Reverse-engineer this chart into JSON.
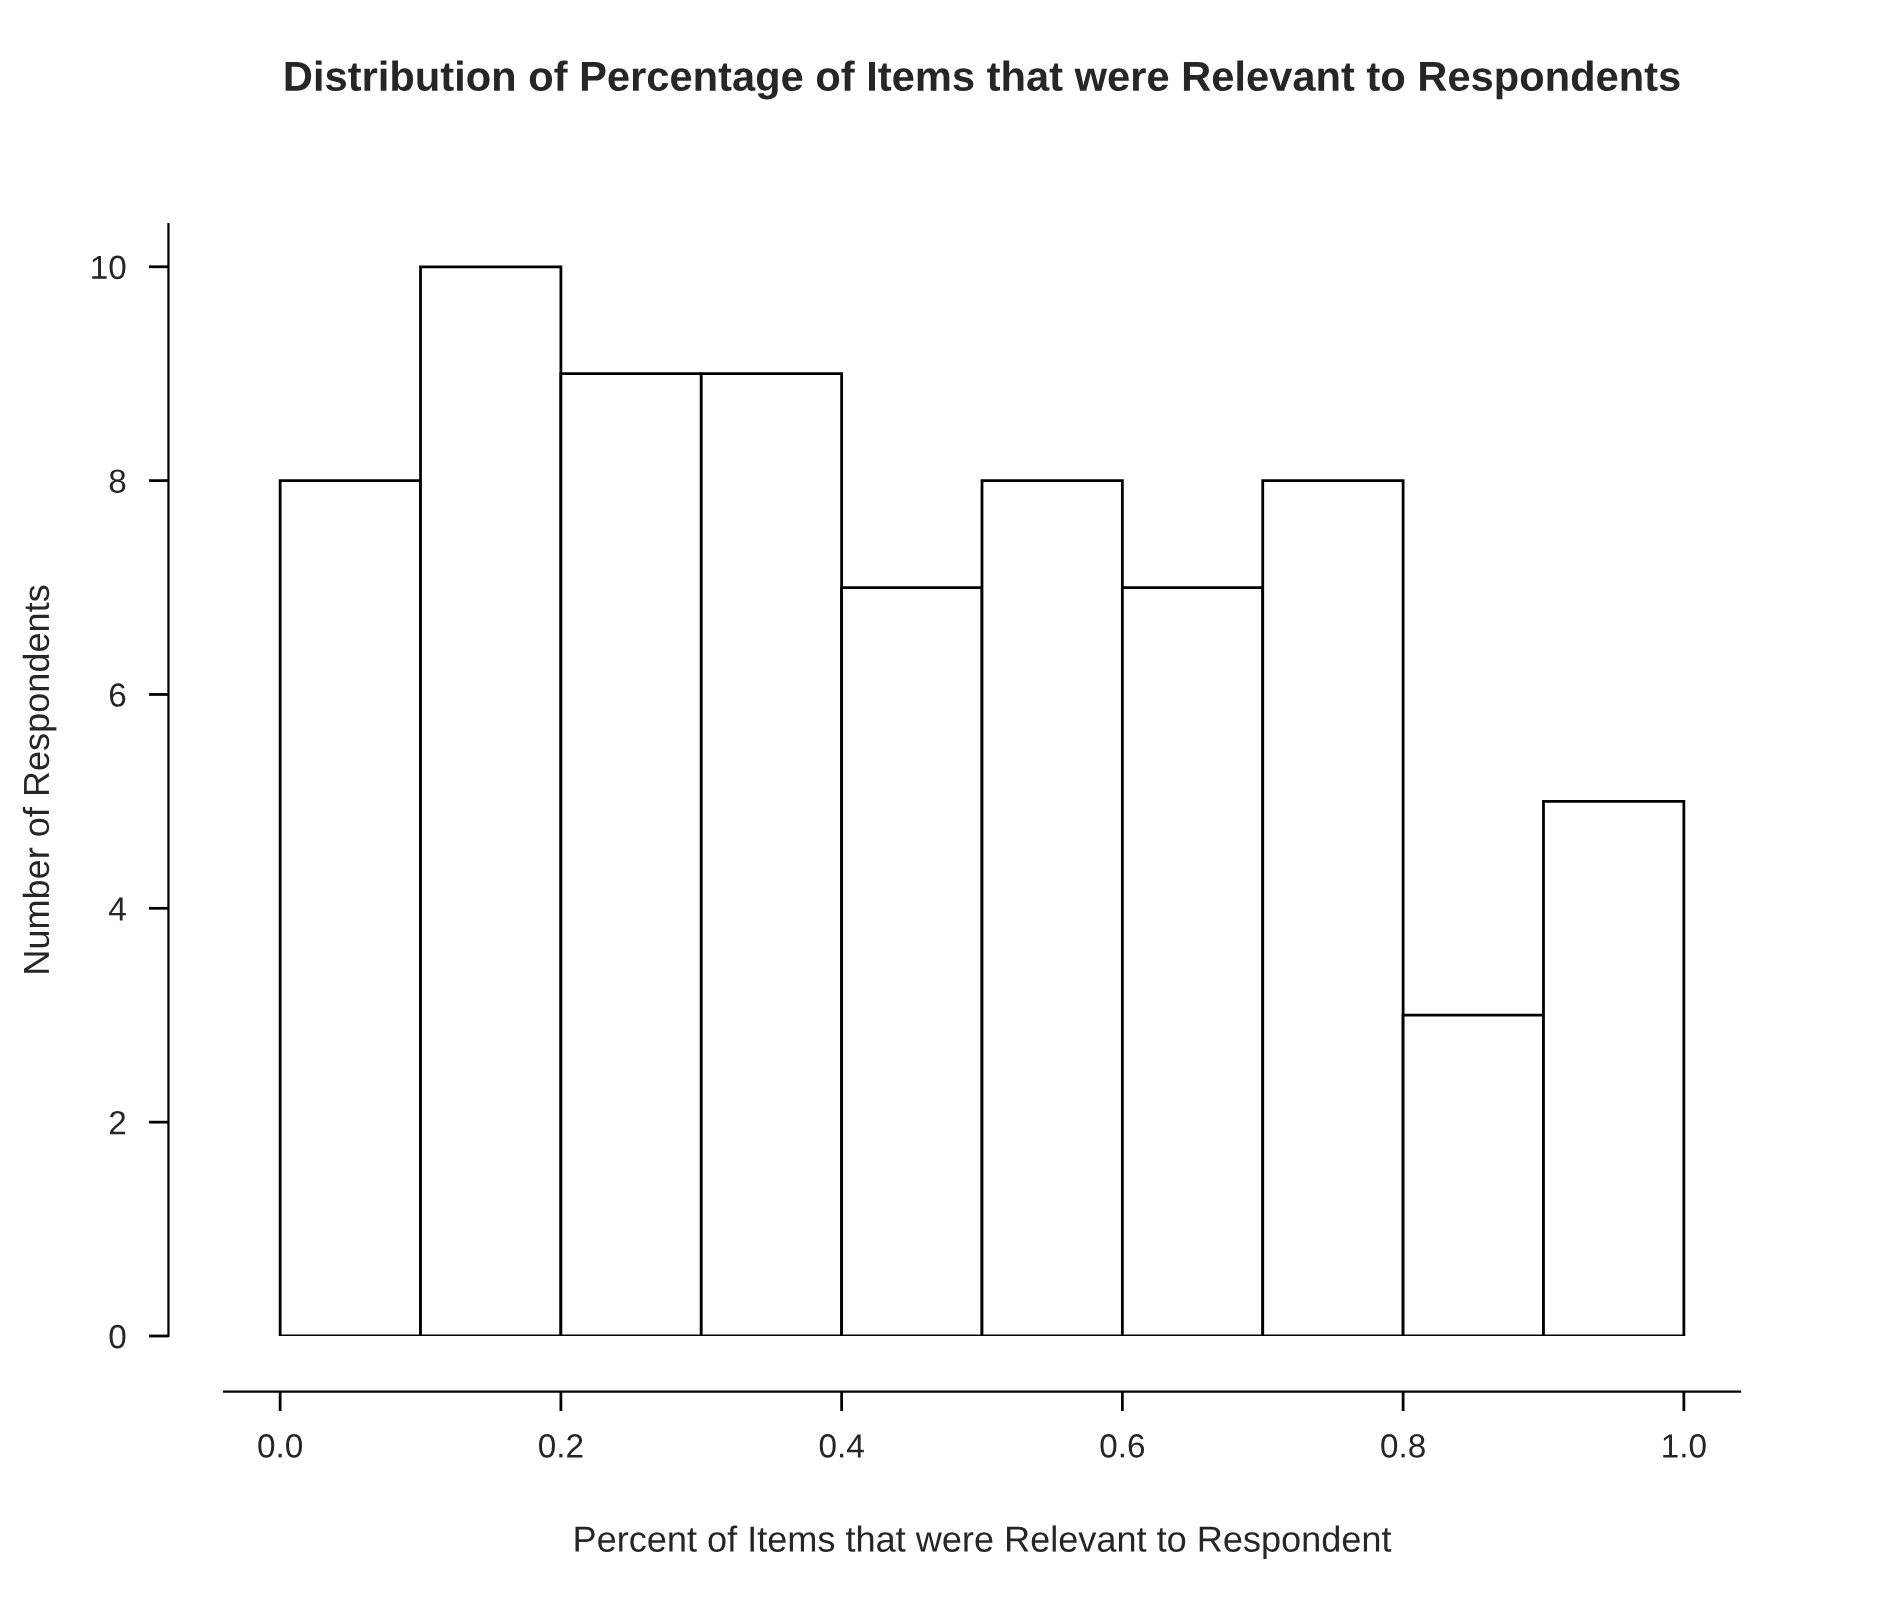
{
  "chart_data": {
    "type": "histogram",
    "title": "Distribution of Percentage of Items that were Relevant to Respondents",
    "xlabel": "Percent of Items that were Relevant to Respondent",
    "ylabel": "Number of Respondents",
    "bins": [
      0.0,
      0.1,
      0.2,
      0.3,
      0.4,
      0.5,
      0.6,
      0.7,
      0.8,
      0.9,
      1.0
    ],
    "values": [
      8,
      10,
      9,
      9,
      7,
      8,
      7,
      8,
      3,
      5
    ],
    "color": "#ffffff",
    "xlim": [
      -0.04,
      1.04
    ],
    "ylim": [
      0,
      10.4
    ],
    "xticks": [
      {
        "value": 0,
        "label": "0.0"
      },
      0.2,
      0.4,
      0.6,
      0.8,
      {
        "value": 1,
        "label": "1.0"
      }
    ],
    "yticks": [
      0,
      2,
      4,
      6,
      8,
      10
    ],
    "grid": false,
    "legend": false
  }
}
